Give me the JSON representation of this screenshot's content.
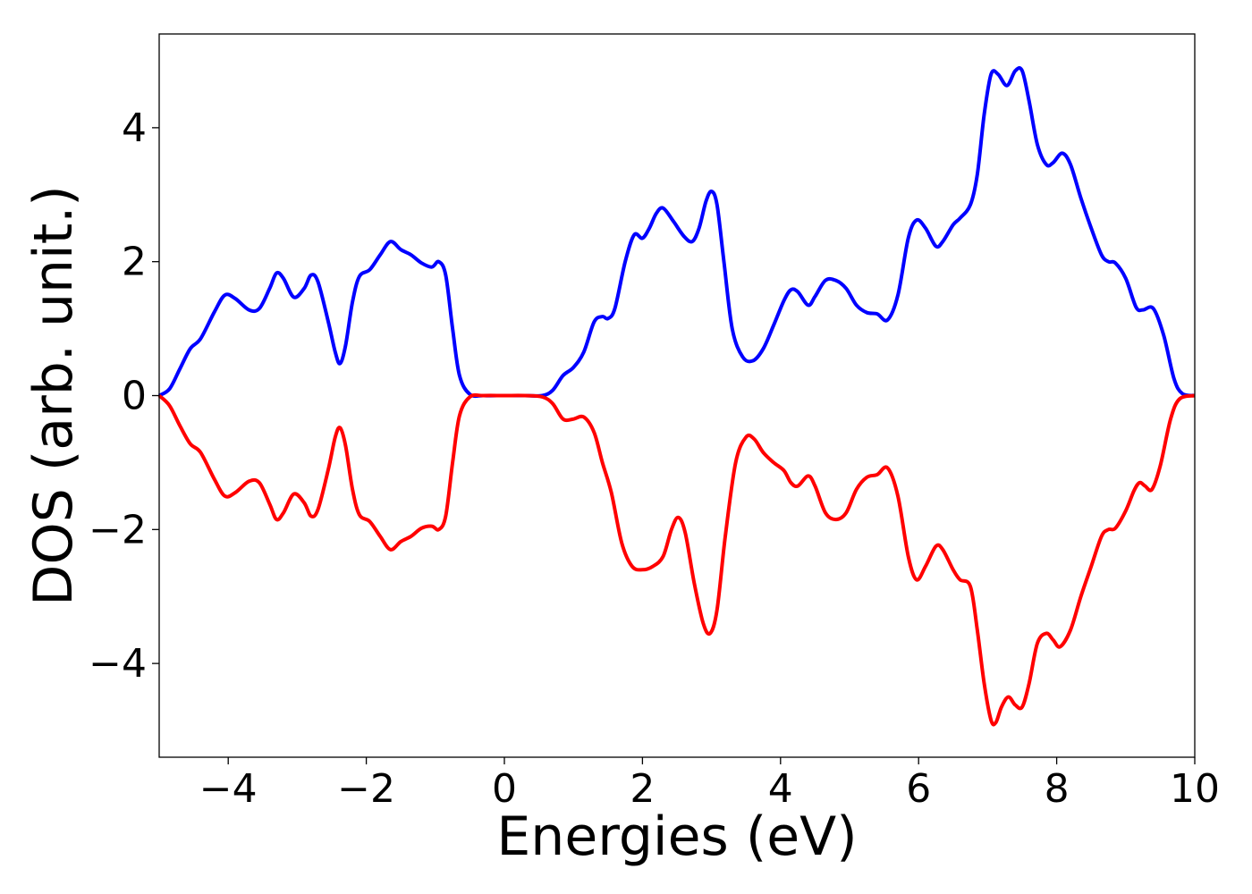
{
  "chart_data": {
    "type": "line",
    "title": "",
    "xlabel": "Energies (eV)",
    "ylabel": "DOS (arb. unit.)",
    "xlim": [
      -5,
      10
    ],
    "ylim": [
      -5.4,
      5.4
    ],
    "xticks": [
      -4,
      -2,
      0,
      2,
      4,
      6,
      8,
      10
    ],
    "xtick_labels": [
      "−4",
      "−2",
      "0",
      "2",
      "4",
      "6",
      "8",
      "10"
    ],
    "yticks": [
      -4,
      -2,
      0,
      2,
      4
    ],
    "ytick_labels": [
      "−4",
      "−2",
      "0",
      "2",
      "4"
    ],
    "grid": false,
    "legend": "none",
    "series": [
      {
        "color": "#0000ff",
        "points": [
          [
            -5.0,
            0.0
          ],
          [
            -4.85,
            0.1
          ],
          [
            -4.7,
            0.4
          ],
          [
            -4.55,
            0.7
          ],
          [
            -4.4,
            0.85
          ],
          [
            -4.2,
            1.25
          ],
          [
            -4.05,
            1.5
          ],
          [
            -3.9,
            1.45
          ],
          [
            -3.7,
            1.28
          ],
          [
            -3.55,
            1.3
          ],
          [
            -3.4,
            1.6
          ],
          [
            -3.3,
            1.83
          ],
          [
            -3.2,
            1.75
          ],
          [
            -3.05,
            1.47
          ],
          [
            -2.9,
            1.6
          ],
          [
            -2.8,
            1.8
          ],
          [
            -2.7,
            1.7
          ],
          [
            -2.55,
            1.1
          ],
          [
            -2.45,
            0.65
          ],
          [
            -2.38,
            0.48
          ],
          [
            -2.3,
            0.75
          ],
          [
            -2.2,
            1.4
          ],
          [
            -2.1,
            1.78
          ],
          [
            -1.95,
            1.88
          ],
          [
            -1.8,
            2.1
          ],
          [
            -1.65,
            2.3
          ],
          [
            -1.5,
            2.18
          ],
          [
            -1.35,
            2.1
          ],
          [
            -1.2,
            1.98
          ],
          [
            -1.05,
            1.92
          ],
          [
            -0.95,
            2.0
          ],
          [
            -0.85,
            1.8
          ],
          [
            -0.75,
            1.0
          ],
          [
            -0.65,
            0.3
          ],
          [
            -0.5,
            0.02
          ],
          [
            -0.3,
            0.0
          ],
          [
            0.0,
            0.0
          ],
          [
            0.3,
            0.0
          ],
          [
            0.55,
            0.0
          ],
          [
            0.7,
            0.08
          ],
          [
            0.85,
            0.3
          ],
          [
            1.0,
            0.42
          ],
          [
            1.15,
            0.65
          ],
          [
            1.3,
            1.1
          ],
          [
            1.42,
            1.18
          ],
          [
            1.5,
            1.15
          ],
          [
            1.6,
            1.3
          ],
          [
            1.75,
            2.0
          ],
          [
            1.88,
            2.4
          ],
          [
            2.0,
            2.35
          ],
          [
            2.1,
            2.5
          ],
          [
            2.2,
            2.72
          ],
          [
            2.3,
            2.8
          ],
          [
            2.45,
            2.6
          ],
          [
            2.6,
            2.38
          ],
          [
            2.72,
            2.3
          ],
          [
            2.82,
            2.5
          ],
          [
            2.92,
            2.9
          ],
          [
            3.0,
            3.05
          ],
          [
            3.08,
            2.85
          ],
          [
            3.18,
            2.0
          ],
          [
            3.3,
            1.0
          ],
          [
            3.45,
            0.58
          ],
          [
            3.6,
            0.52
          ],
          [
            3.75,
            0.7
          ],
          [
            3.9,
            1.05
          ],
          [
            4.05,
            1.42
          ],
          [
            4.15,
            1.58
          ],
          [
            4.25,
            1.55
          ],
          [
            4.4,
            1.35
          ],
          [
            4.5,
            1.48
          ],
          [
            4.65,
            1.72
          ],
          [
            4.8,
            1.72
          ],
          [
            4.95,
            1.6
          ],
          [
            5.1,
            1.35
          ],
          [
            5.25,
            1.24
          ],
          [
            5.4,
            1.22
          ],
          [
            5.55,
            1.13
          ],
          [
            5.7,
            1.5
          ],
          [
            5.85,
            2.35
          ],
          [
            5.97,
            2.62
          ],
          [
            6.1,
            2.5
          ],
          [
            6.25,
            2.23
          ],
          [
            6.35,
            2.3
          ],
          [
            6.5,
            2.55
          ],
          [
            6.6,
            2.65
          ],
          [
            6.75,
            2.85
          ],
          [
            6.85,
            3.3
          ],
          [
            6.95,
            4.2
          ],
          [
            7.05,
            4.8
          ],
          [
            7.15,
            4.8
          ],
          [
            7.28,
            4.63
          ],
          [
            7.4,
            4.85
          ],
          [
            7.5,
            4.85
          ],
          [
            7.6,
            4.4
          ],
          [
            7.72,
            3.75
          ],
          [
            7.85,
            3.45
          ],
          [
            7.95,
            3.48
          ],
          [
            8.08,
            3.62
          ],
          [
            8.2,
            3.45
          ],
          [
            8.35,
            2.95
          ],
          [
            8.5,
            2.5
          ],
          [
            8.65,
            2.1
          ],
          [
            8.75,
            2.0
          ],
          [
            8.85,
            1.98
          ],
          [
            9.0,
            1.75
          ],
          [
            9.15,
            1.32
          ],
          [
            9.25,
            1.28
          ],
          [
            9.4,
            1.3
          ],
          [
            9.55,
            0.9
          ],
          [
            9.7,
            0.25
          ],
          [
            9.82,
            0.03
          ],
          [
            10.0,
            0.0
          ]
        ]
      },
      {
        "color": "#ff0000",
        "points": [
          [
            -5.0,
            0.0
          ],
          [
            -4.85,
            -0.15
          ],
          [
            -4.7,
            -0.45
          ],
          [
            -4.55,
            -0.72
          ],
          [
            -4.4,
            -0.85
          ],
          [
            -4.2,
            -1.25
          ],
          [
            -4.05,
            -1.5
          ],
          [
            -3.9,
            -1.45
          ],
          [
            -3.7,
            -1.28
          ],
          [
            -3.55,
            -1.3
          ],
          [
            -3.4,
            -1.62
          ],
          [
            -3.3,
            -1.85
          ],
          [
            -3.2,
            -1.75
          ],
          [
            -3.05,
            -1.47
          ],
          [
            -2.9,
            -1.6
          ],
          [
            -2.8,
            -1.8
          ],
          [
            -2.7,
            -1.7
          ],
          [
            -2.55,
            -1.1
          ],
          [
            -2.45,
            -0.62
          ],
          [
            -2.38,
            -0.48
          ],
          [
            -2.3,
            -0.75
          ],
          [
            -2.2,
            -1.4
          ],
          [
            -2.1,
            -1.78
          ],
          [
            -1.95,
            -1.88
          ],
          [
            -1.8,
            -2.1
          ],
          [
            -1.65,
            -2.3
          ],
          [
            -1.5,
            -2.18
          ],
          [
            -1.35,
            -2.1
          ],
          [
            -1.2,
            -1.98
          ],
          [
            -1.05,
            -1.95
          ],
          [
            -0.95,
            -2.0
          ],
          [
            -0.85,
            -1.8
          ],
          [
            -0.75,
            -1.0
          ],
          [
            -0.65,
            -0.3
          ],
          [
            -0.5,
            -0.02
          ],
          [
            -0.3,
            0.0
          ],
          [
            0.0,
            0.0
          ],
          [
            0.3,
            0.0
          ],
          [
            0.55,
            -0.02
          ],
          [
            0.7,
            -0.12
          ],
          [
            0.85,
            -0.35
          ],
          [
            1.0,
            -0.35
          ],
          [
            1.15,
            -0.32
          ],
          [
            1.3,
            -0.55
          ],
          [
            1.42,
            -1.0
          ],
          [
            1.55,
            -1.45
          ],
          [
            1.7,
            -2.2
          ],
          [
            1.85,
            -2.55
          ],
          [
            2.0,
            -2.6
          ],
          [
            2.15,
            -2.55
          ],
          [
            2.3,
            -2.4
          ],
          [
            2.42,
            -2.0
          ],
          [
            2.52,
            -1.82
          ],
          [
            2.62,
            -2.05
          ],
          [
            2.75,
            -2.8
          ],
          [
            2.88,
            -3.4
          ],
          [
            2.98,
            -3.55
          ],
          [
            3.08,
            -3.2
          ],
          [
            3.2,
            -2.1
          ],
          [
            3.35,
            -1.0
          ],
          [
            3.5,
            -0.62
          ],
          [
            3.62,
            -0.65
          ],
          [
            3.75,
            -0.85
          ],
          [
            3.9,
            -1.0
          ],
          [
            4.05,
            -1.12
          ],
          [
            4.15,
            -1.3
          ],
          [
            4.25,
            -1.35
          ],
          [
            4.4,
            -1.2
          ],
          [
            4.5,
            -1.35
          ],
          [
            4.65,
            -1.75
          ],
          [
            4.8,
            -1.85
          ],
          [
            4.95,
            -1.75
          ],
          [
            5.1,
            -1.4
          ],
          [
            5.25,
            -1.22
          ],
          [
            5.4,
            -1.18
          ],
          [
            5.55,
            -1.08
          ],
          [
            5.7,
            -1.5
          ],
          [
            5.85,
            -2.4
          ],
          [
            5.97,
            -2.75
          ],
          [
            6.1,
            -2.55
          ],
          [
            6.25,
            -2.25
          ],
          [
            6.35,
            -2.3
          ],
          [
            6.5,
            -2.6
          ],
          [
            6.6,
            -2.75
          ],
          [
            6.75,
            -2.85
          ],
          [
            6.85,
            -3.5
          ],
          [
            6.95,
            -4.3
          ],
          [
            7.05,
            -4.85
          ],
          [
            7.12,
            -4.88
          ],
          [
            7.2,
            -4.65
          ],
          [
            7.3,
            -4.5
          ],
          [
            7.4,
            -4.62
          ],
          [
            7.5,
            -4.65
          ],
          [
            7.6,
            -4.3
          ],
          [
            7.72,
            -3.7
          ],
          [
            7.85,
            -3.55
          ],
          [
            7.95,
            -3.65
          ],
          [
            8.05,
            -3.75
          ],
          [
            8.2,
            -3.5
          ],
          [
            8.35,
            -3.0
          ],
          [
            8.5,
            -2.55
          ],
          [
            8.65,
            -2.1
          ],
          [
            8.75,
            -2.0
          ],
          [
            8.85,
            -1.98
          ],
          [
            9.0,
            -1.72
          ],
          [
            9.12,
            -1.42
          ],
          [
            9.2,
            -1.3
          ],
          [
            9.28,
            -1.35
          ],
          [
            9.38,
            -1.4
          ],
          [
            9.5,
            -1.05
          ],
          [
            9.65,
            -0.35
          ],
          [
            9.78,
            -0.05
          ],
          [
            10.0,
            0.0
          ]
        ]
      }
    ]
  }
}
